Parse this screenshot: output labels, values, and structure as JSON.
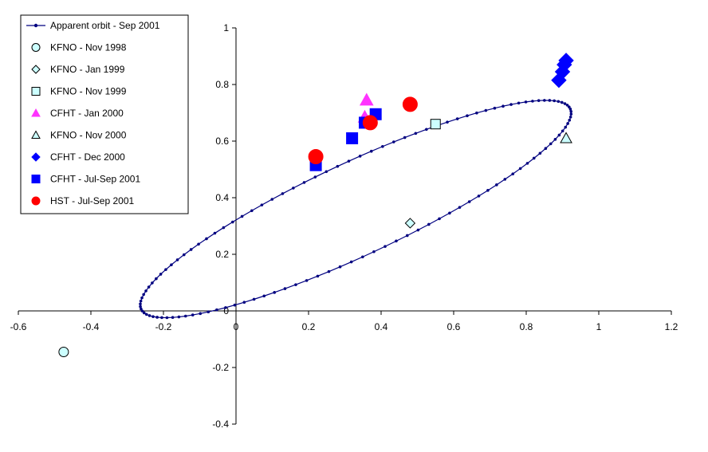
{
  "chart_data": {
    "type": "scatter",
    "title": "",
    "xlabel": "",
    "ylabel": "",
    "xlim": [
      -0.6,
      1.2
    ],
    "ylim": [
      -0.4,
      1.0
    ],
    "x_ticks": [
      -0.6,
      -0.4,
      -0.2,
      0,
      0.2,
      0.4,
      0.6,
      0.8,
      1,
      1.2
    ],
    "y_ticks": [
      -0.4,
      -0.2,
      0,
      0.2,
      0.4,
      0.6,
      0.8,
      1
    ],
    "x_tick_labels": [
      "-0.6",
      "-0.4",
      "-0.2",
      "0",
      "0.2",
      "0.4",
      "0.6",
      "0.8",
      "1",
      "1.2"
    ],
    "y_tick_labels": [
      "-0.4",
      "-0.2",
      "0",
      "0.2",
      "0.4",
      "0.6",
      "0.8",
      "1"
    ],
    "grid": false,
    "legend_position": "top-left",
    "orbit": {
      "center": [
        0.33,
        0.36
      ],
      "semi_major": 0.69,
      "semi_minor": 0.155,
      "angle_deg": 31.5,
      "points": 120
    },
    "series": [
      {
        "name": "Apparent orbit - Sep 2001",
        "marker": "line-dot",
        "color": "#000080",
        "fill": "#000080",
        "size": 3,
        "points": []
      },
      {
        "name": "KFNO - Nov 1998",
        "marker": "circle",
        "color": "#000000",
        "fill": "#ccffff",
        "size": 6,
        "points": [
          [
            -0.475,
            -0.145
          ]
        ]
      },
      {
        "name": "KFNO - Jan 1999",
        "marker": "diamond",
        "color": "#000000",
        "fill": "#ccffff",
        "size": 6,
        "points": [
          [
            0.48,
            0.31
          ]
        ]
      },
      {
        "name": "KFNO - Nov 1999",
        "marker": "square",
        "color": "#000000",
        "fill": "#ccffff",
        "size": 6,
        "points": [
          [
            0.55,
            0.66
          ]
        ]
      },
      {
        "name": "CFHT - Jan 2000",
        "marker": "triangle",
        "color": "#ff33ff",
        "fill": "#ff33ff",
        "size": 8,
        "points": [
          [
            0.36,
            0.745
          ],
          [
            0.355,
            0.685
          ]
        ]
      },
      {
        "name": "KFNO - Nov 2000",
        "marker": "triangle",
        "color": "#000000",
        "fill": "#ccffff",
        "size": 7,
        "points": [
          [
            0.91,
            0.61
          ]
        ]
      },
      {
        "name": "CFHT - Dec 2000",
        "marker": "diamond",
        "color": "#0000ff",
        "fill": "#0000ff",
        "size": 9,
        "points": [
          [
            0.89,
            0.815
          ],
          [
            0.9,
            0.845
          ],
          [
            0.905,
            0.87
          ],
          [
            0.91,
            0.885
          ]
        ]
      },
      {
        "name": "CFHT - Jul-Sep 2001",
        "marker": "square",
        "color": "#0000ff",
        "fill": "#0000ff",
        "size": 7,
        "points": [
          [
            0.22,
            0.515
          ],
          [
            0.32,
            0.61
          ],
          [
            0.355,
            0.665
          ],
          [
            0.385,
            0.695
          ]
        ]
      },
      {
        "name": "HST - Jul-Sep 2001",
        "marker": "circle",
        "color": "#ff0000",
        "fill": "#ff0000",
        "size": 9,
        "points": [
          [
            0.22,
            0.545
          ],
          [
            0.37,
            0.665
          ],
          [
            0.48,
            0.73
          ]
        ]
      }
    ]
  }
}
